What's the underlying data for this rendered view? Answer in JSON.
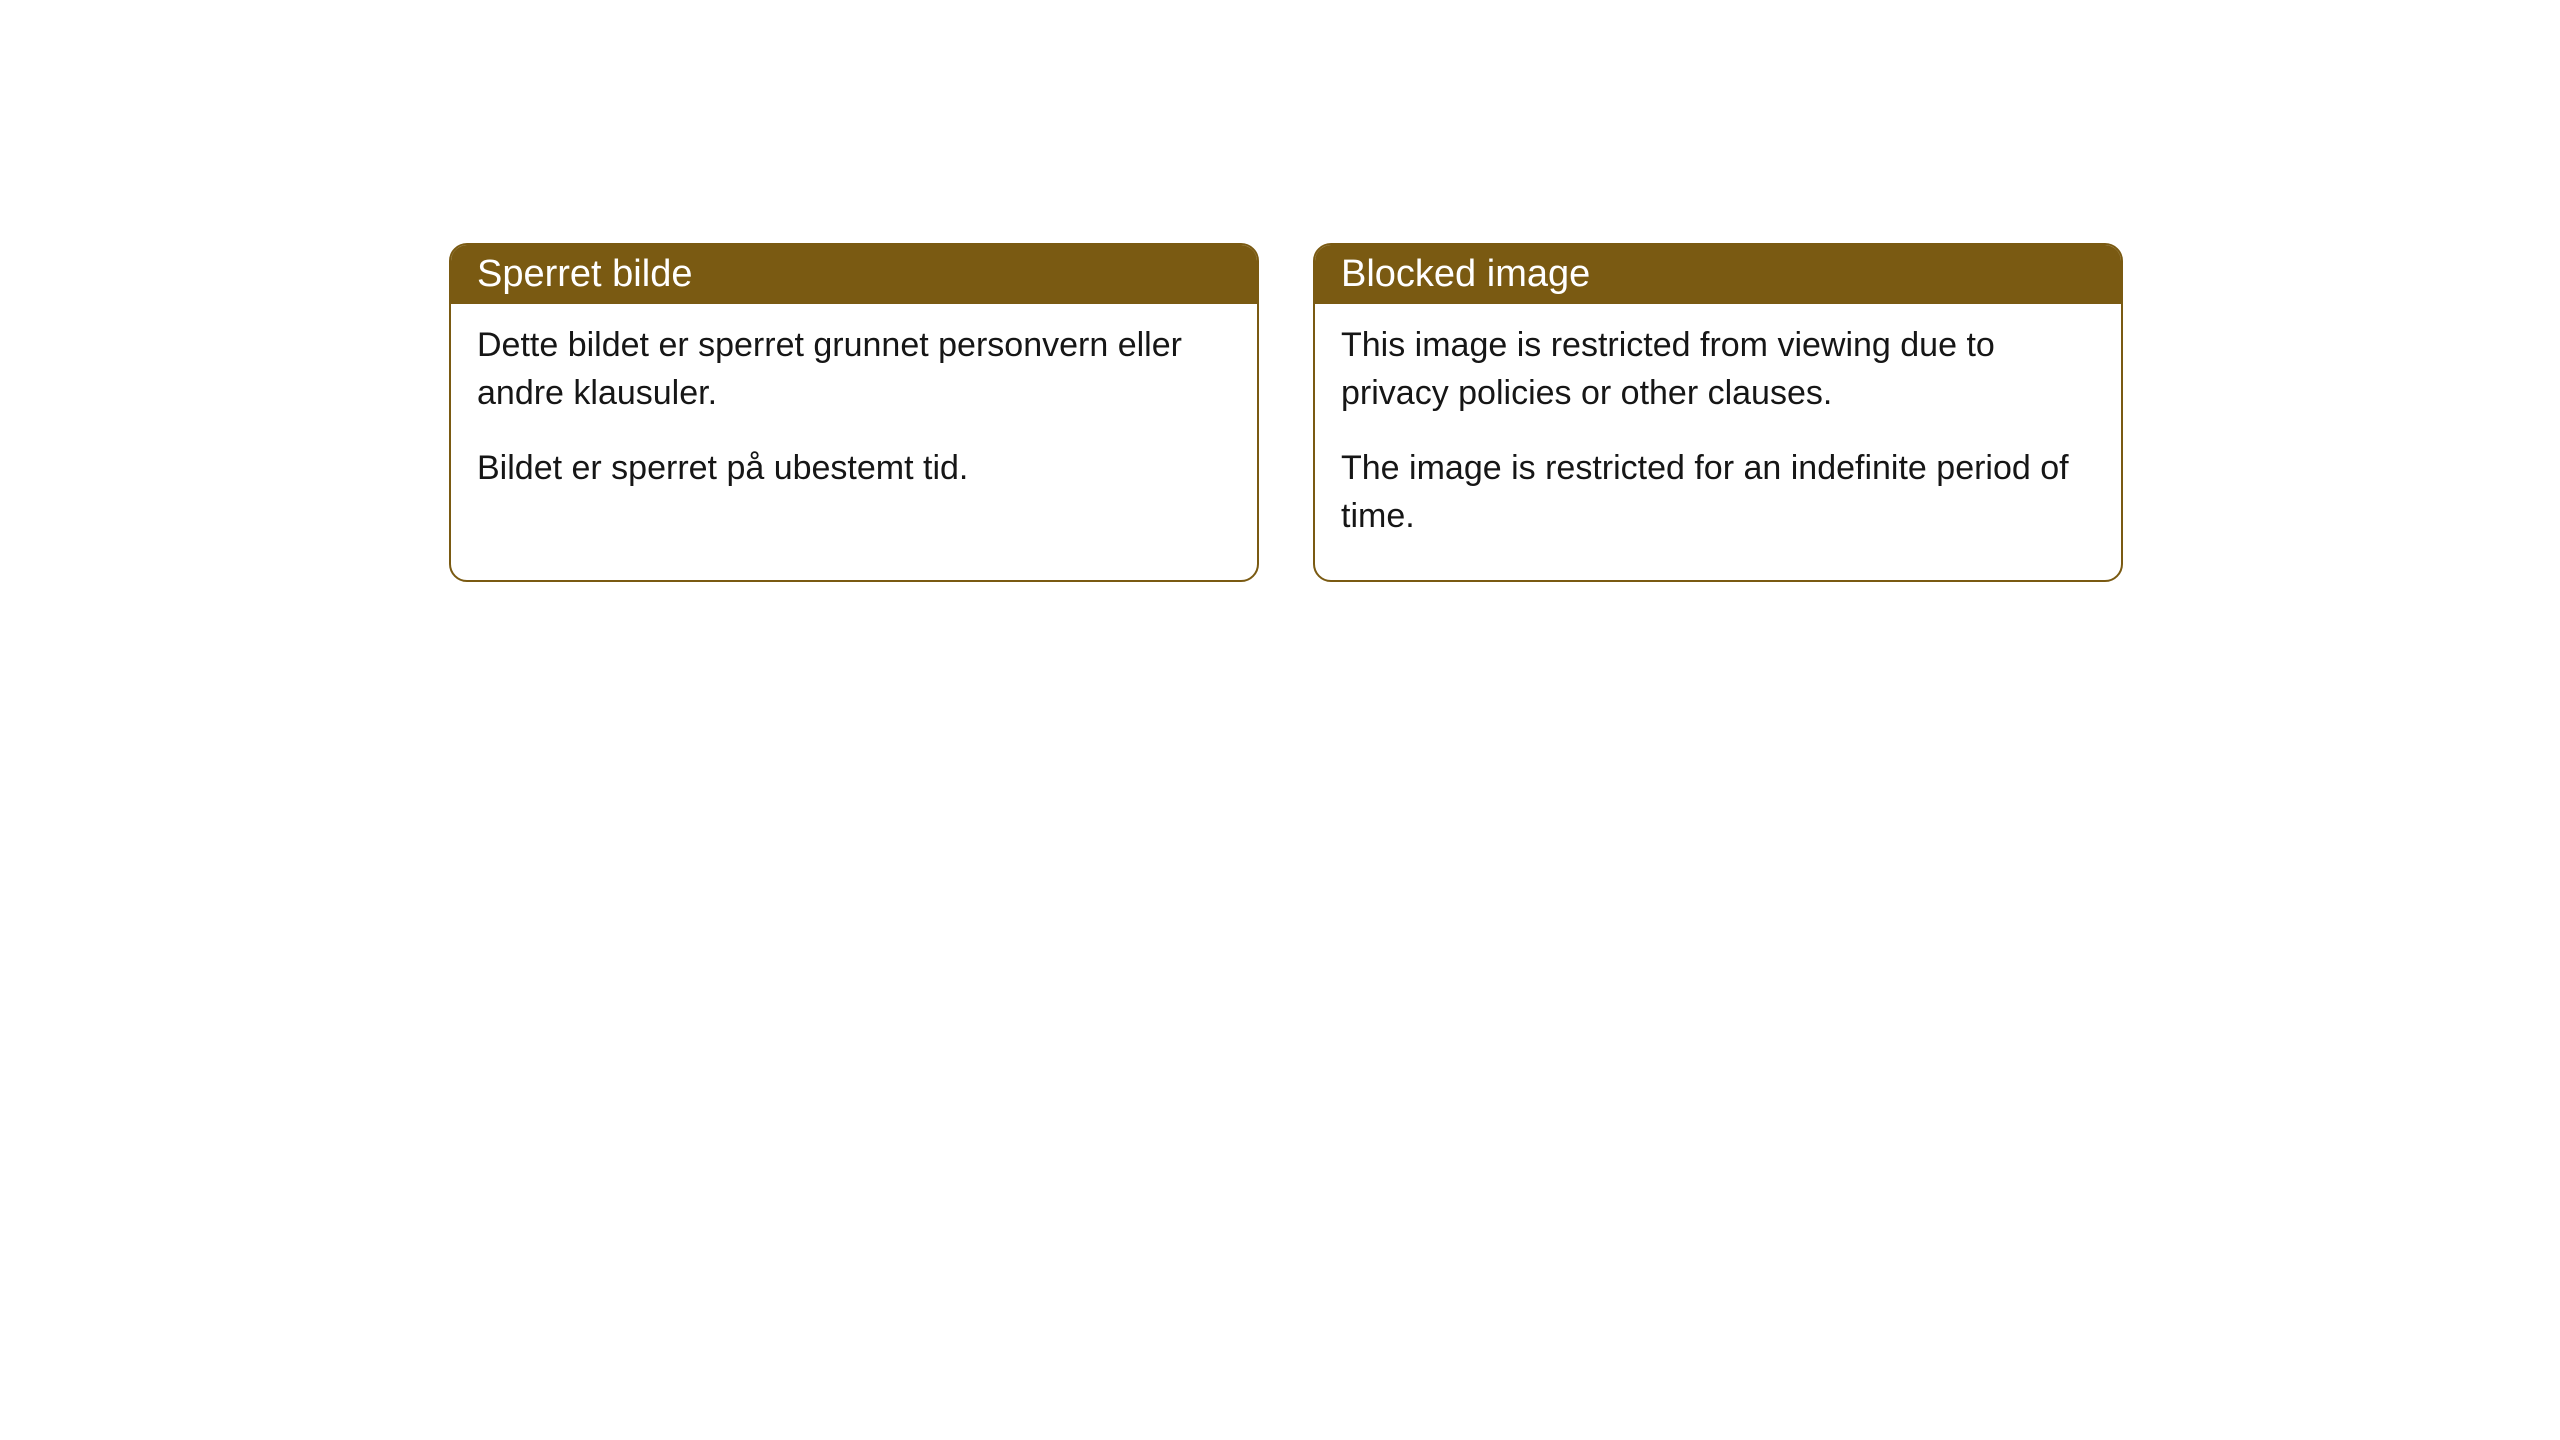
{
  "cards": {
    "norwegian": {
      "title": "Sperret bilde",
      "paragraph1": "Dette bildet er sperret grunnet personvern eller andre klausuler.",
      "paragraph2": "Bildet er sperret på ubestemt tid."
    },
    "english": {
      "title": "Blocked image",
      "paragraph1": "This image is restricted from viewing due to privacy policies or other clauses.",
      "paragraph2": "The image is restricted for an indefinite period of time."
    }
  },
  "style": {
    "header_background": "#7a5a12",
    "header_text_color": "#ffffff",
    "body_text_color": "#161616",
    "border_color": "#7a5a12",
    "card_background": "#ffffff",
    "page_background": "#ffffff",
    "border_radius": 18,
    "title_fontsize": 38,
    "body_fontsize": 34
  }
}
